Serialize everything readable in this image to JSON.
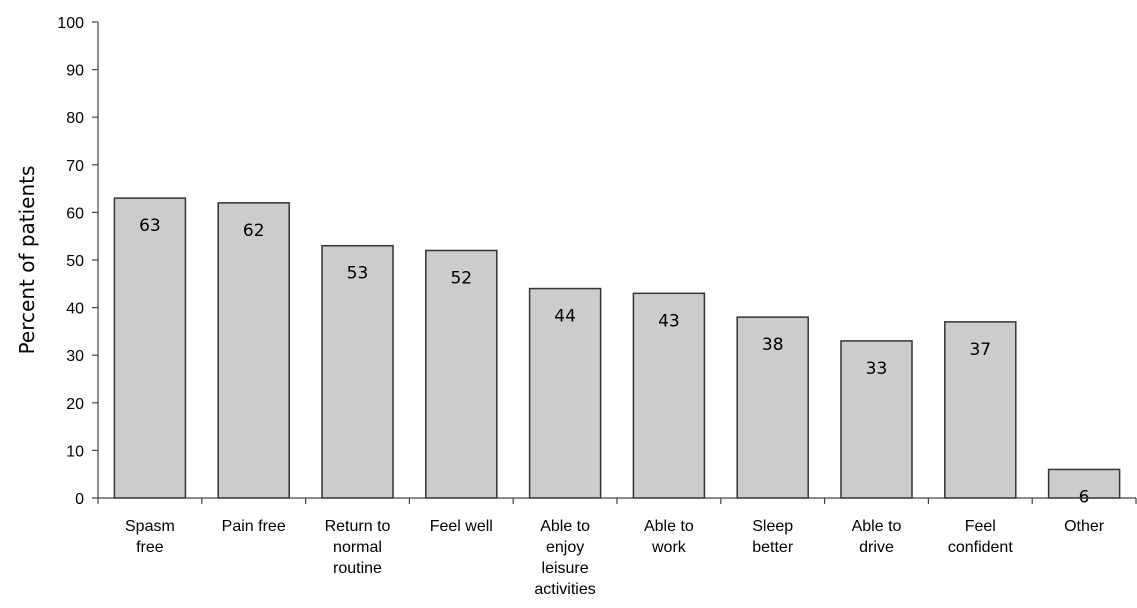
{
  "chart_data": {
    "type": "bar",
    "title": "",
    "xlabel": "",
    "ylabel": "Percent of patients",
    "ylim": [
      0,
      100
    ],
    "yticks": [
      0,
      10,
      20,
      30,
      40,
      50,
      60,
      70,
      80,
      90,
      100
    ],
    "grid": false,
    "legend": "none",
    "categories": [
      [
        "Spasm",
        "free"
      ],
      [
        "Pain free"
      ],
      [
        "Return to",
        "normal",
        "routine"
      ],
      [
        "Feel well"
      ],
      [
        "Able to",
        "enjoy",
        "leisure",
        "activities"
      ],
      [
        "Able to",
        "work"
      ],
      [
        "Sleep",
        "better"
      ],
      [
        "Able to",
        "drive"
      ],
      [
        "Feel",
        "confident"
      ],
      [
        "Other"
      ]
    ],
    "values": [
      63,
      62,
      53,
      52,
      44,
      43,
      38,
      33,
      37,
      6
    ],
    "data_labels": [
      "63",
      "62",
      "53",
      "52",
      "44",
      "43",
      "38",
      "33",
      "37",
      "6"
    ],
    "colors": {
      "bar_fill": "#cccccc",
      "bar_stroke": "#333333",
      "axis": "#444444"
    }
  }
}
